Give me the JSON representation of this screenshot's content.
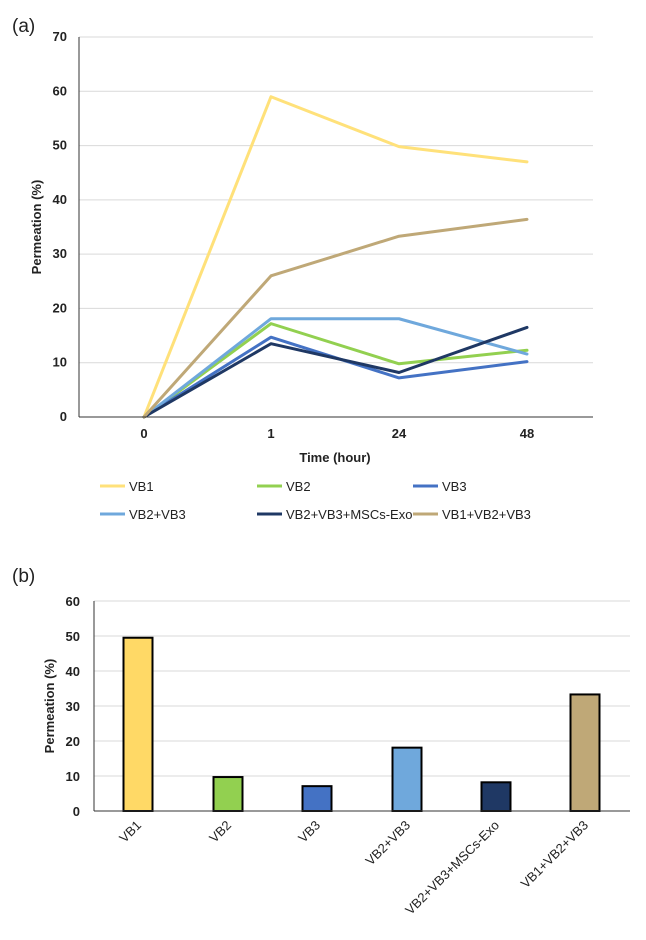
{
  "chart_data": [
    {
      "type": "line",
      "panel_label": "(a)",
      "xlabel": "Time (hour)",
      "ylabel": "Permeation (%)",
      "categories": [
        "0",
        "1",
        "24",
        "48"
      ],
      "ylim": [
        0,
        70
      ],
      "yticks": [
        0,
        10,
        20,
        30,
        40,
        50,
        60,
        70
      ],
      "grid": true,
      "legend_position": "bottom",
      "series": [
        {
          "name": "VB1",
          "color": "#FFE17A",
          "values": [
            0,
            59,
            49.8,
            47
          ]
        },
        {
          "name": "VB2",
          "color": "#92D050",
          "values": [
            0,
            17.2,
            9.8,
            12.3
          ]
        },
        {
          "name": "VB3",
          "color": "#4472C4",
          "values": [
            0,
            14.7,
            7.2,
            10.2
          ]
        },
        {
          "name": "VB2+VB3",
          "color": "#6FA8DC",
          "values": [
            0,
            18.1,
            18.1,
            11.6
          ]
        },
        {
          "name": "VB2+VB3+MSCs-Exo",
          "color": "#1F3864",
          "values": [
            0,
            13.5,
            8.2,
            16.5
          ]
        },
        {
          "name": "VB1+VB2+VB3",
          "color": "#BFA877",
          "values": [
            0,
            26,
            33.3,
            36.4
          ]
        }
      ]
    },
    {
      "type": "bar",
      "panel_label": "(b)",
      "xlabel": "",
      "ylabel": "Permeation (%)",
      "categories": [
        "VB1",
        "VB2",
        "VB3",
        "VB2+VB3",
        "VB2+VB3+MSCs-Exo",
        "VB1+VB2+VB3"
      ],
      "values": [
        49.5,
        9.7,
        7.1,
        18.1,
        8.2,
        33.3
      ],
      "colors": [
        "#FFD966",
        "#92D050",
        "#4472C4",
        "#6FA8DC",
        "#1F3864",
        "#BFA877"
      ],
      "ylim": [
        0,
        60
      ],
      "yticks": [
        0,
        10,
        20,
        30,
        40,
        50,
        60
      ],
      "grid": true
    }
  ]
}
